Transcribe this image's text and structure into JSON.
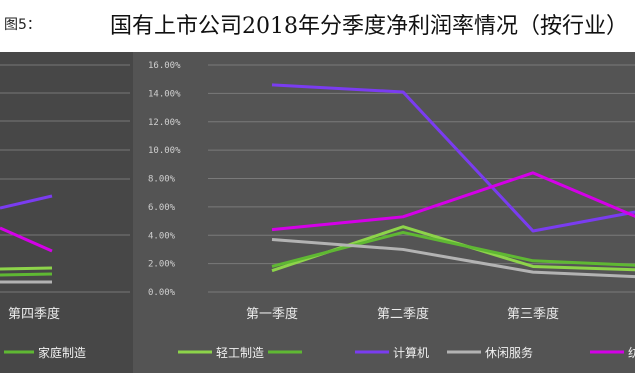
{
  "header": {
    "prefix": "图5：",
    "title": "国有上市公司2018年分季度净利润率情况（按行业）"
  },
  "left_panel": {
    "category": "第四季度",
    "legend_label": "家庭制造"
  },
  "colors": {
    "background": "#3e3e3e",
    "plot_background": "#545454",
    "left_background": "#474747"
  },
  "chart_data": {
    "type": "line",
    "title": "国有上市公司2018年分季度净利润率情况（按行业）",
    "categories": [
      "第一季度",
      "第二季度",
      "第三季度",
      "第四季度"
    ],
    "ylim": [
      0,
      16
    ],
    "yticks": [
      "0.00%",
      "2.00%",
      "4.00%",
      "6.00%",
      "8.00%",
      "10.00%",
      "12.00%",
      "14.00%",
      "16.00%"
    ],
    "grid": true,
    "legend_position": "bottom",
    "series": [
      {
        "name": "轻工制造",
        "color": "#8dd44a",
        "values": [
          1.5,
          4.6,
          1.8,
          1.5
        ]
      },
      {
        "name": "",
        "color": "#5fb833",
        "values": [
          1.8,
          4.2,
          2.2,
          1.8
        ]
      },
      {
        "name": "计算机",
        "color": "#7a3cf0",
        "values": [
          14.6,
          14.1,
          4.3,
          6.0
        ]
      },
      {
        "name": "休闲服务",
        "color": "#b3b3b3",
        "values": [
          3.7,
          3.0,
          1.4,
          1.0
        ]
      },
      {
        "name": "纺织服装",
        "color": "#d400e8",
        "values": [
          4.4,
          5.3,
          8.4,
          4.5
        ]
      }
    ]
  }
}
